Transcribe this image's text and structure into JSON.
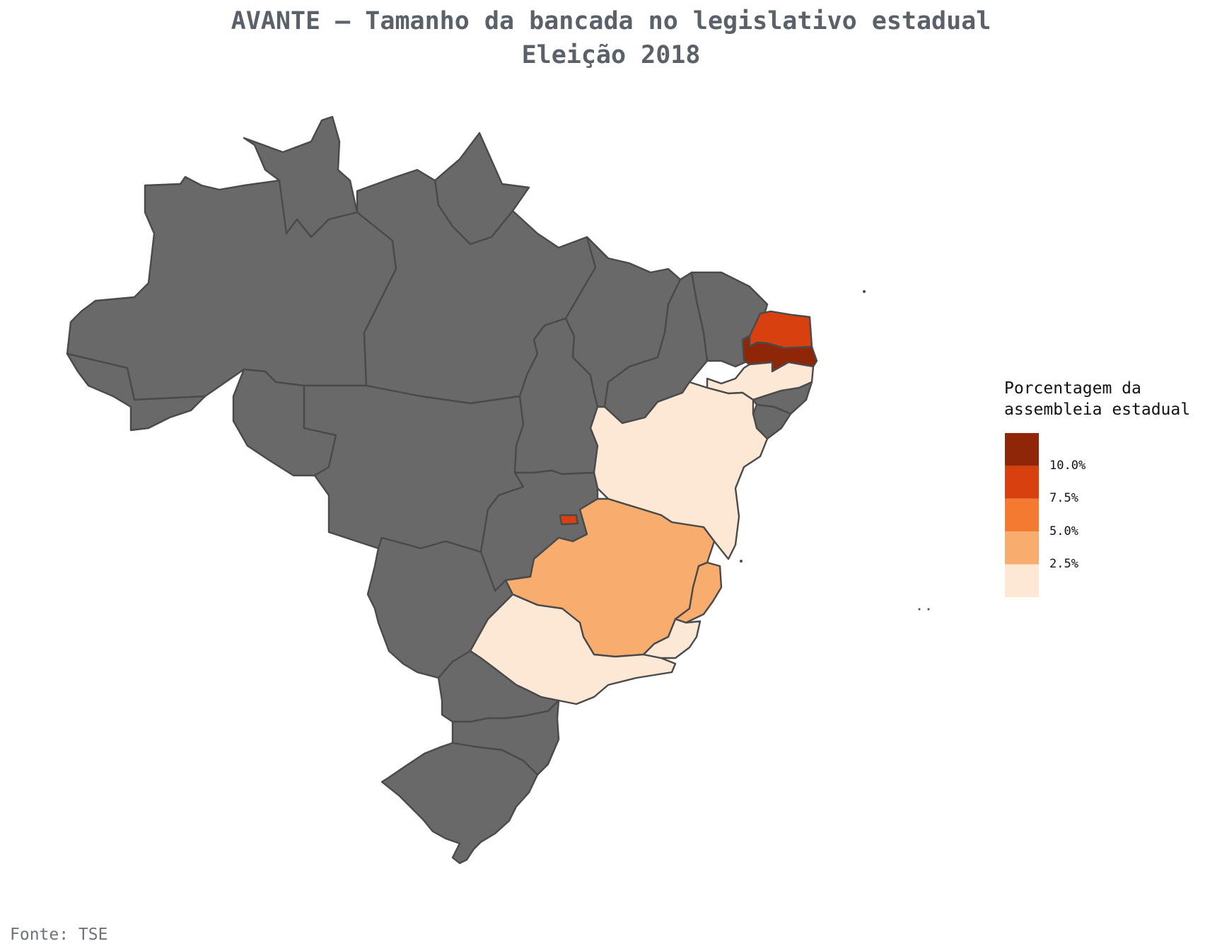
{
  "title": {
    "line1": "AVANTE – Tamanho da bancada no legislativo estadual",
    "line2": "Eleição 2018"
  },
  "legend": {
    "title_line1": "Porcentagem da",
    "title_line2": "assembleia estadual",
    "tick_labels": [
      "10.0%",
      "7.5%",
      "5.0%",
      "2.5%"
    ],
    "colors": [
      "#8f2607",
      "#d9400f",
      "#f47a32",
      "#f8ad6e",
      "#fde8d6"
    ]
  },
  "no_data_color": "#696969",
  "source": "Fonte: TSE",
  "states": [
    {
      "id": "AM",
      "category": "no-data"
    },
    {
      "id": "RR",
      "category": "no-data"
    },
    {
      "id": "AP",
      "category": "no-data"
    },
    {
      "id": "PA",
      "category": "no-data"
    },
    {
      "id": "AC",
      "category": "no-data"
    },
    {
      "id": "RO",
      "category": "no-data"
    },
    {
      "id": "MT",
      "category": "no-data"
    },
    {
      "id": "TO",
      "category": "no-data"
    },
    {
      "id": "MA",
      "category": "no-data"
    },
    {
      "id": "PI",
      "category": "no-data"
    },
    {
      "id": "CE",
      "category": "no-data"
    },
    {
      "id": "RN",
      "category": "7.5-10%"
    },
    {
      "id": "PB",
      "category": ">10%"
    },
    {
      "id": "PE",
      "category": "0-2.5%"
    },
    {
      "id": "AL",
      "category": "no-data"
    },
    {
      "id": "SE",
      "category": "no-data"
    },
    {
      "id": "BA",
      "category": "0-2.5%"
    },
    {
      "id": "GO",
      "category": "no-data"
    },
    {
      "id": "DF",
      "category": "7.5-10%"
    },
    {
      "id": "MG",
      "category": "2.5-5%"
    },
    {
      "id": "ES",
      "category": "2.5-5%"
    },
    {
      "id": "MS",
      "category": "no-data"
    },
    {
      "id": "SP",
      "category": "0-2.5%"
    },
    {
      "id": "RJ",
      "category": "0-2.5%"
    },
    {
      "id": "PR",
      "category": "no-data"
    },
    {
      "id": "SC",
      "category": "no-data"
    },
    {
      "id": "RS",
      "category": "no-data"
    }
  ]
}
